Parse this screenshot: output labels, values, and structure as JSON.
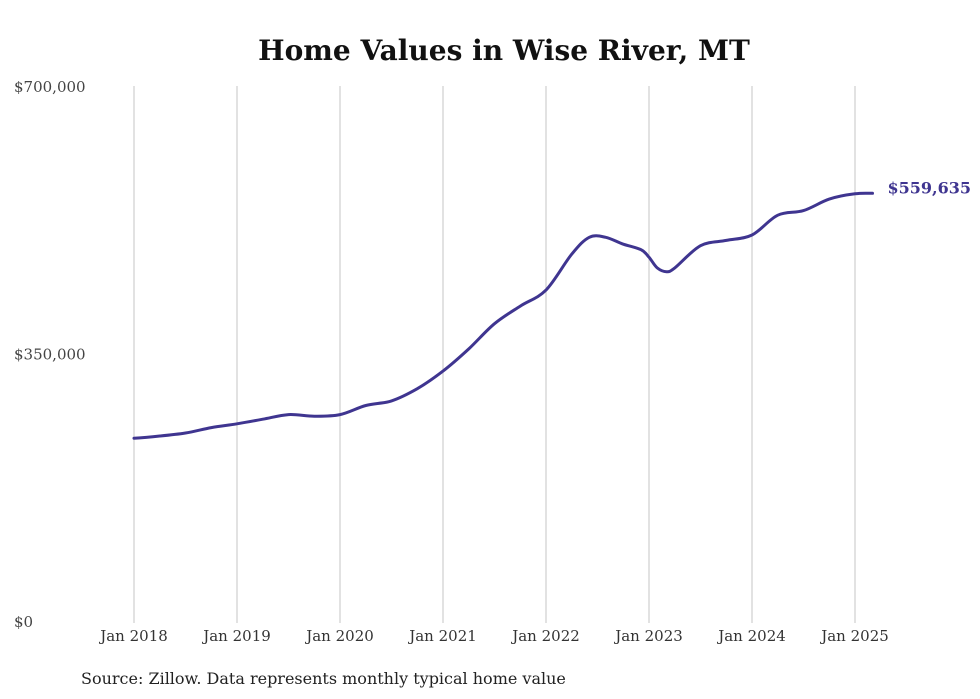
{
  "chart_data": {
    "type": "line",
    "title": "Home Values in Wise River, MT",
    "source": "Source: Zillow. Data represents monthly typical home value",
    "xlabel": "",
    "ylabel": "",
    "ylim": [
      0,
      700000
    ],
    "y_ticks": [
      {
        "value": 0,
        "label": "$0"
      },
      {
        "value": 350000,
        "label": "$350,000"
      },
      {
        "value": 700000,
        "label": "$700,000"
      }
    ],
    "x_ticks": [
      {
        "value": 2018.0,
        "label": "Jan 2018"
      },
      {
        "value": 2019.0,
        "label": "Jan 2019"
      },
      {
        "value": 2020.0,
        "label": "Jan 2020"
      },
      {
        "value": 2021.0,
        "label": "Jan 2021"
      },
      {
        "value": 2022.0,
        "label": "Jan 2022"
      },
      {
        "value": 2023.0,
        "label": "Jan 2023"
      },
      {
        "value": 2024.0,
        "label": "Jan 2024"
      },
      {
        "value": 2025.0,
        "label": "Jan 2025"
      }
    ],
    "xlim": [
      2018.0,
      2025.25
    ],
    "grid": "vertical",
    "line_color": "#3f3590",
    "end_label": "$559,635",
    "series": [
      {
        "name": "",
        "points": [
          [
            2018.0,
            239000
          ],
          [
            2018.25,
            242000
          ],
          [
            2018.5,
            246000
          ],
          [
            2018.75,
            253000
          ],
          [
            2019.0,
            258000
          ],
          [
            2019.25,
            264000
          ],
          [
            2019.5,
            270000
          ],
          [
            2019.75,
            268000
          ],
          [
            2020.0,
            270000
          ],
          [
            2020.25,
            282000
          ],
          [
            2020.5,
            288000
          ],
          [
            2020.75,
            304000
          ],
          [
            2021.0,
            327000
          ],
          [
            2021.25,
            356000
          ],
          [
            2021.5,
            389000
          ],
          [
            2021.75,
            412000
          ],
          [
            2022.0,
            433000
          ],
          [
            2022.25,
            480000
          ],
          [
            2022.42,
            502000
          ],
          [
            2022.58,
            502000
          ],
          [
            2022.75,
            493000
          ],
          [
            2022.92,
            486000
          ],
          [
            2023.0,
            476000
          ],
          [
            2023.08,
            462000
          ],
          [
            2023.17,
            457000
          ],
          [
            2023.25,
            462000
          ],
          [
            2023.5,
            491000
          ],
          [
            2023.75,
            498000
          ],
          [
            2024.0,
            505000
          ],
          [
            2024.25,
            531000
          ],
          [
            2024.5,
            537000
          ],
          [
            2024.75,
            552000
          ],
          [
            2025.0,
            559000
          ],
          [
            2025.17,
            559635
          ]
        ]
      }
    ]
  }
}
